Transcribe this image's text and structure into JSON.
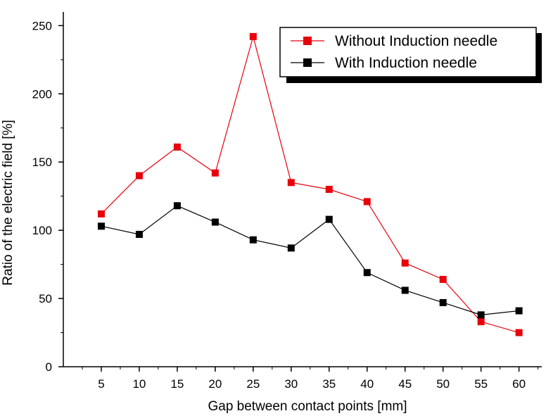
{
  "chart_data": {
    "type": "line",
    "title": "",
    "xlabel": "Gap between contact points [mm]",
    "ylabel": "Ratio of the electric field [%]",
    "xlim": [
      0,
      63
    ],
    "ylim": [
      0,
      260
    ],
    "x": [
      5,
      10,
      15,
      20,
      25,
      30,
      35,
      40,
      45,
      50,
      55,
      60
    ],
    "x_ticks": [
      "5",
      "10",
      "15",
      "20",
      "25",
      "30",
      "35",
      "40",
      "45",
      "50",
      "55",
      "60"
    ],
    "y_ticks": [
      "0",
      "50",
      "100",
      "150",
      "200",
      "250"
    ],
    "grid": false,
    "legend_position": "top-right",
    "series": [
      {
        "name": "Without Induction needle",
        "color": "#e8000b",
        "marker": "square",
        "values": [
          112,
          140,
          161,
          142,
          242,
          135,
          130,
          121,
          76,
          64,
          33,
          25
        ]
      },
      {
        "name": "With Induction needle",
        "color": "#000000",
        "marker": "square",
        "values": [
          103,
          97,
          118,
          106,
          93,
          87,
          108,
          69,
          56,
          47,
          38,
          41
        ]
      }
    ]
  }
}
